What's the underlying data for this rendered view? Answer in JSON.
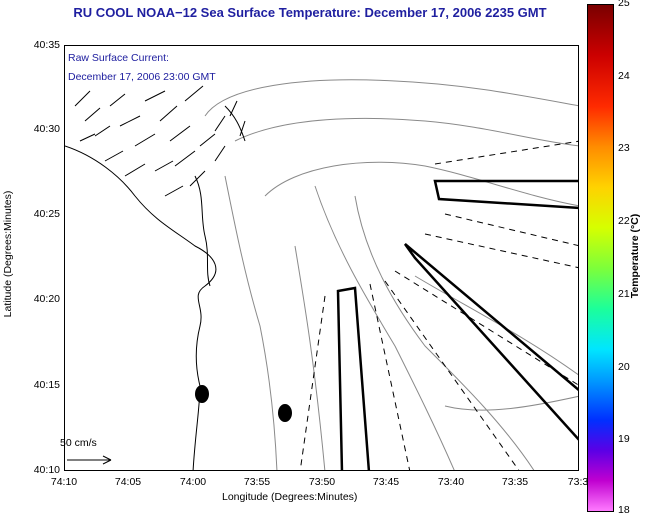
{
  "title": "RU COOL  NOAA−12  Sea Surface Temperature:  December 17, 2006 2235 GMT",
  "current_legend": [
    "Raw Surface Current:",
    "December 17, 2006 23:00 GMT"
  ],
  "axes": {
    "x_label": "Longitude (Degrees:Minutes)",
    "y_label": "Latitude (Degrees:Minutes)",
    "x_ticks": [
      "74:10",
      "74:05",
      "74:00",
      "73:55",
      "73:50",
      "73:45",
      "73:40",
      "73:35",
      "73:3"
    ],
    "y_ticks": [
      "40:35",
      "40:30",
      "40:25",
      "40:20",
      "40:15",
      "40:10"
    ]
  },
  "colorbar": {
    "label": "Temperature (°C)",
    "ticks": [
      "25",
      "24",
      "23",
      "22",
      "21",
      "20",
      "19",
      "18"
    ]
  },
  "scale_arrow_label": "50 cm/s"
}
